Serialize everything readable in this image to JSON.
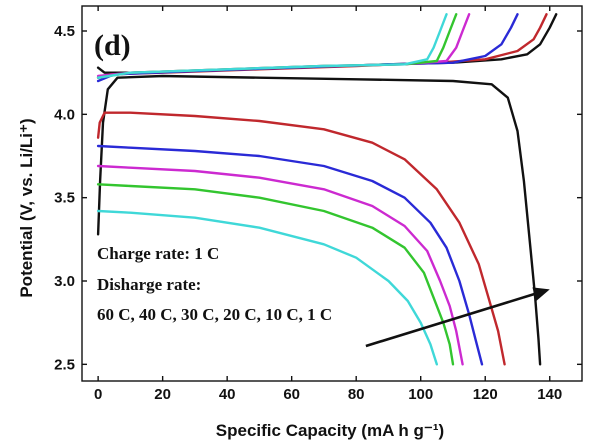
{
  "chart_data": {
    "type": "line",
    "panel_label": "(d)",
    "xlabel": "Specific Capacity (mA h g⁻¹)",
    "ylabel": "Potential (V, vs. Li/Li⁺)",
    "xlim": [
      -5,
      150
    ],
    "ylim": [
      2.4,
      4.65
    ],
    "x_ticks": [
      0,
      20,
      40,
      60,
      80,
      100,
      120,
      140
    ],
    "y_ticks": [
      2.5,
      3.0,
      3.5,
      4.0,
      4.5
    ],
    "y_tick_labels": [
      "2.5",
      "3.0",
      "3.5",
      "4.0",
      "4.5"
    ],
    "grid": false,
    "annotations": [
      "Charge rate: 1 C",
      "Disharge rate:",
      "60 C, 40 C, 30 C, 20 C, 10 C, 1 C"
    ],
    "arrow": {
      "from": [
        83,
        2.61
      ],
      "to": [
        140,
        2.95
      ]
    },
    "series": [
      {
        "color": "#111111",
        "charge": [
          [
            0,
            4.28
          ],
          [
            2,
            4.25
          ],
          [
            10,
            4.25
          ],
          [
            30,
            4.26
          ],
          [
            60,
            4.28
          ],
          [
            90,
            4.3
          ],
          [
            110,
            4.31
          ],
          [
            125,
            4.33
          ],
          [
            133,
            4.36
          ],
          [
            137,
            4.42
          ],
          [
            140,
            4.52
          ],
          [
            142,
            4.6
          ]
        ],
        "discharge": [
          [
            0,
            3.28
          ],
          [
            0.6,
            3.6
          ],
          [
            1.5,
            3.95
          ],
          [
            3,
            4.15
          ],
          [
            6,
            4.22
          ],
          [
            20,
            4.23
          ],
          [
            50,
            4.22
          ],
          [
            80,
            4.21
          ],
          [
            110,
            4.2
          ],
          [
            122,
            4.18
          ],
          [
            127,
            4.1
          ],
          [
            130,
            3.9
          ],
          [
            132,
            3.6
          ],
          [
            134,
            3.2
          ],
          [
            135.5,
            2.9
          ],
          [
            136.5,
            2.65
          ],
          [
            137,
            2.5
          ]
        ]
      },
      {
        "color": "#c0282d",
        "charge": [
          [
            0,
            4.22
          ],
          [
            4,
            4.24
          ],
          [
            20,
            4.25
          ],
          [
            50,
            4.27
          ],
          [
            80,
            4.29
          ],
          [
            105,
            4.31
          ],
          [
            120,
            4.33
          ],
          [
            130,
            4.38
          ],
          [
            135,
            4.45
          ],
          [
            137,
            4.52
          ],
          [
            139,
            4.6
          ]
        ],
        "discharge": [
          [
            0,
            3.86
          ],
          [
            0.5,
            3.95
          ],
          [
            2,
            4.01
          ],
          [
            10,
            4.01
          ],
          [
            30,
            3.99
          ],
          [
            50,
            3.96
          ],
          [
            70,
            3.91
          ],
          [
            85,
            3.83
          ],
          [
            95,
            3.73
          ],
          [
            105,
            3.55
          ],
          [
            112,
            3.35
          ],
          [
            118,
            3.1
          ],
          [
            121,
            2.9
          ],
          [
            124,
            2.7
          ],
          [
            126,
            2.5
          ]
        ]
      },
      {
        "color": "#2a2ad6",
        "charge": [
          [
            0,
            4.2
          ],
          [
            5,
            4.24
          ],
          [
            30,
            4.26
          ],
          [
            60,
            4.28
          ],
          [
            90,
            4.3
          ],
          [
            110,
            4.31
          ],
          [
            120,
            4.35
          ],
          [
            125,
            4.42
          ],
          [
            128,
            4.52
          ],
          [
            130,
            4.6
          ]
        ],
        "discharge": [
          [
            0,
            3.81
          ],
          [
            10,
            3.8
          ],
          [
            30,
            3.78
          ],
          [
            50,
            3.75
          ],
          [
            70,
            3.69
          ],
          [
            85,
            3.6
          ],
          [
            95,
            3.5
          ],
          [
            103,
            3.35
          ],
          [
            108,
            3.2
          ],
          [
            112,
            3.0
          ],
          [
            115,
            2.8
          ],
          [
            117,
            2.65
          ],
          [
            119,
            2.5
          ]
        ]
      },
      {
        "color": "#cc2ad0",
        "charge": [
          [
            0,
            4.23
          ],
          [
            10,
            4.25
          ],
          [
            40,
            4.27
          ],
          [
            70,
            4.29
          ],
          [
            95,
            4.3
          ],
          [
            108,
            4.32
          ],
          [
            111,
            4.4
          ],
          [
            113,
            4.5
          ],
          [
            115,
            4.6
          ]
        ],
        "discharge": [
          [
            0,
            3.69
          ],
          [
            10,
            3.68
          ],
          [
            30,
            3.66
          ],
          [
            50,
            3.62
          ],
          [
            70,
            3.55
          ],
          [
            85,
            3.45
          ],
          [
            95,
            3.33
          ],
          [
            102,
            3.18
          ],
          [
            106,
            3.0
          ],
          [
            109,
            2.85
          ],
          [
            111,
            2.7
          ],
          [
            113,
            2.5
          ]
        ]
      },
      {
        "color": "#33c52f",
        "charge": [
          [
            0,
            4.22
          ],
          [
            10,
            4.25
          ],
          [
            40,
            4.27
          ],
          [
            70,
            4.29
          ],
          [
            95,
            4.3
          ],
          [
            105,
            4.32
          ],
          [
            107,
            4.4
          ],
          [
            109,
            4.5
          ],
          [
            111,
            4.6
          ]
        ],
        "discharge": [
          [
            0,
            3.58
          ],
          [
            10,
            3.57
          ],
          [
            30,
            3.55
          ],
          [
            50,
            3.5
          ],
          [
            70,
            3.42
          ],
          [
            85,
            3.32
          ],
          [
            95,
            3.2
          ],
          [
            101,
            3.05
          ],
          [
            104,
            2.9
          ],
          [
            107,
            2.75
          ],
          [
            109,
            2.62
          ],
          [
            110,
            2.5
          ]
        ]
      },
      {
        "color": "#3fd8d8",
        "charge": [
          [
            0,
            4.22
          ],
          [
            10,
            4.25
          ],
          [
            40,
            4.27
          ],
          [
            70,
            4.29
          ],
          [
            95,
            4.3
          ],
          [
            102,
            4.33
          ],
          [
            104,
            4.4
          ],
          [
            106,
            4.5
          ],
          [
            108,
            4.6
          ]
        ],
        "discharge": [
          [
            0,
            3.42
          ],
          [
            10,
            3.41
          ],
          [
            30,
            3.38
          ],
          [
            50,
            3.32
          ],
          [
            70,
            3.22
          ],
          [
            80,
            3.14
          ],
          [
            90,
            3.0
          ],
          [
            96,
            2.88
          ],
          [
            100,
            2.75
          ],
          [
            103,
            2.62
          ],
          [
            105,
            2.5
          ]
        ]
      }
    ]
  }
}
